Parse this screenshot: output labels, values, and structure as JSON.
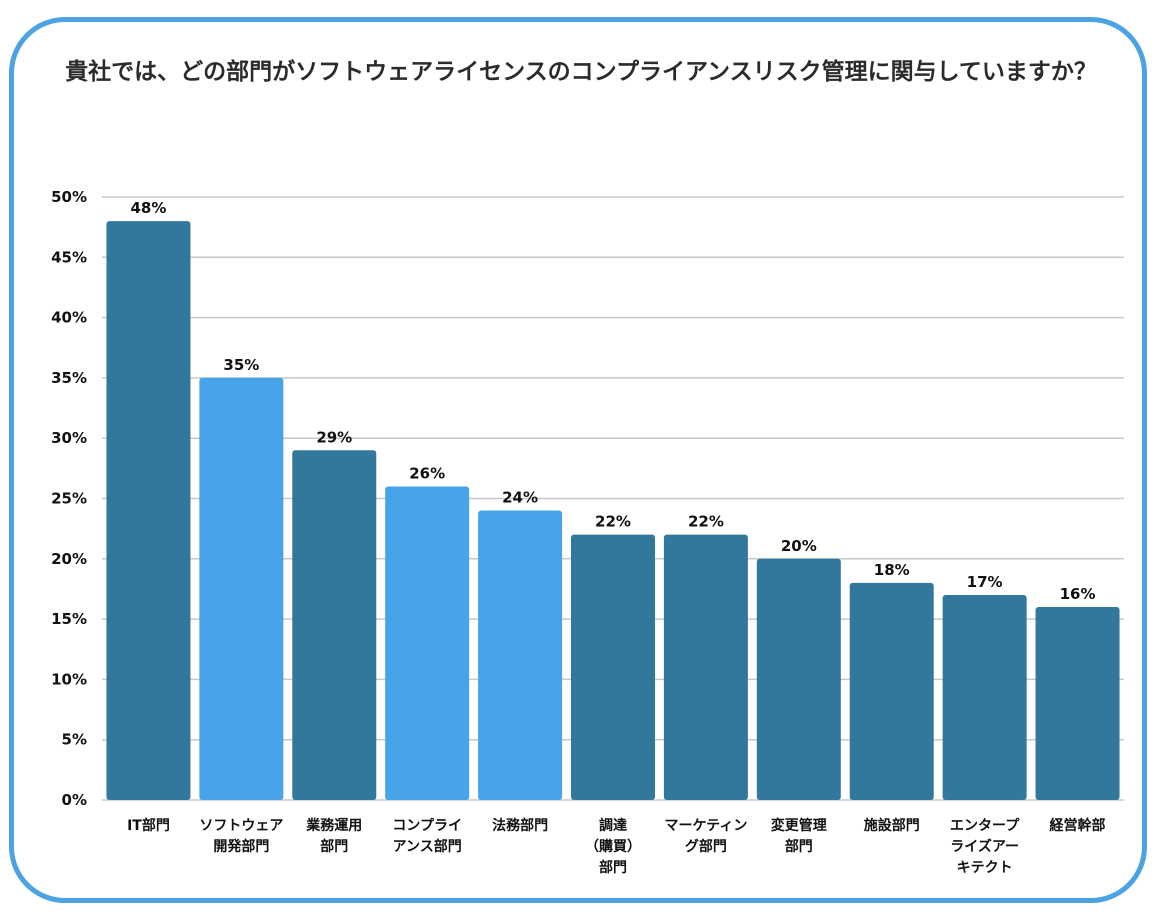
{
  "chart_data": {
    "type": "bar",
    "title": "貴社では、どの部門がソフトウェアライセンスのコンプライアンスリスク管理に関与していますか？",
    "categories": [
      [
        "IT部門"
      ],
      [
        "ソフトウェア",
        "開発部門"
      ],
      [
        "業務運用",
        "部門"
      ],
      [
        "コンプライ",
        "アンス部門"
      ],
      [
        "法務部門"
      ],
      [
        "調達",
        "（購買）",
        "部門"
      ],
      [
        "マーケティン",
        "グ部門"
      ],
      [
        "変更管理",
        "部門"
      ],
      [
        "施設部門"
      ],
      [
        "エンタープ",
        "ライズアー",
        "キテクト"
      ],
      [
        "経営幹部"
      ]
    ],
    "values": [
      48,
      35,
      29,
      26,
      24,
      22,
      22,
      20,
      18,
      17,
      16
    ],
    "data_labels": [
      "48%",
      "35%",
      "29%",
      "26%",
      "24%",
      "22%",
      "22%",
      "20%",
      "18%",
      "17%",
      "16%"
    ],
    "bar_colors": [
      "#32789c",
      "#48a4e8",
      "#32789c",
      "#48a4e8",
      "#48a4e8",
      "#32789c",
      "#32789c",
      "#32789c",
      "#32789c",
      "#32789c",
      "#32789c"
    ],
    "ylim": [
      0,
      50
    ],
    "yticks": [
      0,
      5,
      10,
      15,
      20,
      25,
      30,
      35,
      40,
      45,
      50
    ],
    "ytick_labels": [
      "0%",
      "5%",
      "10%",
      "15%",
      "20%",
      "25%",
      "30%",
      "35%",
      "40%",
      "45%",
      "50%"
    ],
    "grid": true,
    "gridline_color": "#c8c8c8",
    "frame_color": "#4ba3e3"
  }
}
